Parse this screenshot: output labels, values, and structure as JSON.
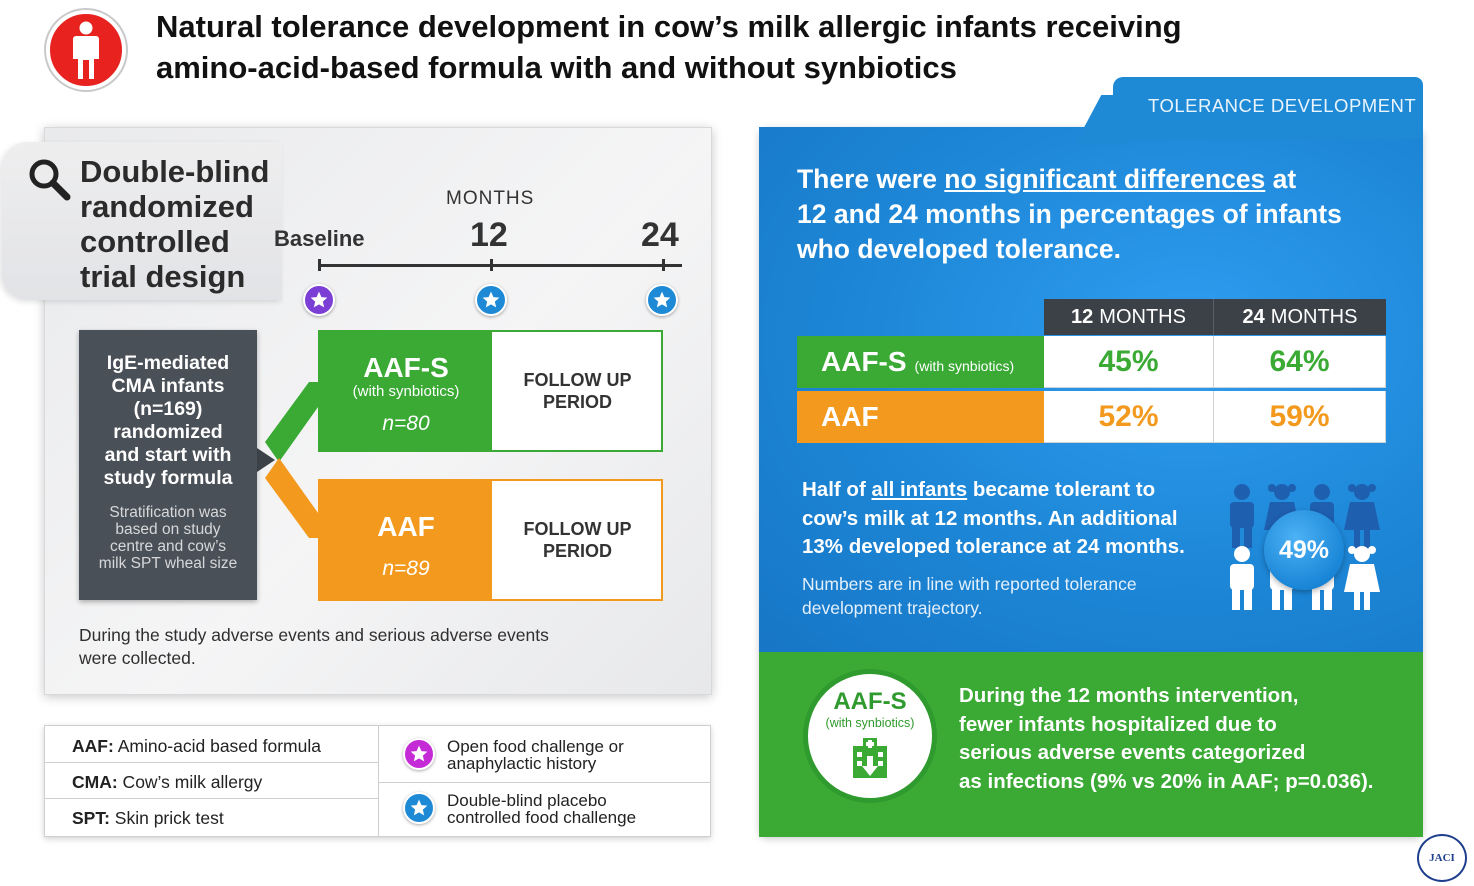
{
  "header": {
    "title_line1": "Natural tolerance development in cow’s milk allergic infants receiving",
    "title_line2": "amino-acid-based formula with and without synbiotics",
    "icon": "person-icon"
  },
  "design": {
    "title_lines": [
      "Double-blind",
      "randomized",
      "controlled",
      "trial design"
    ],
    "timeline": {
      "months_label": "MONTHS",
      "baseline_label": "Baseline",
      "m12_label": "12",
      "m24_label": "24"
    },
    "population": {
      "main_lines": [
        "IgE-mediated",
        "CMA infants",
        "(n=169)",
        "randomized",
        "and start with",
        "study formula"
      ],
      "strat_lines": [
        "Stratification was",
        "based on study",
        "centre and cow’s",
        "milk SPT wheal size"
      ]
    },
    "arms": [
      {
        "name": "AAF-S",
        "sub": "(with synbiotics)",
        "n": "n=80",
        "followup_lines": [
          "FOLLOW UP",
          "PERIOD"
        ],
        "color": "#3aaa35"
      },
      {
        "name": "AAF",
        "sub": "",
        "n": "n=89",
        "followup_lines": [
          "FOLLOW UP",
          "PERIOD"
        ],
        "color": "#f39a1e"
      }
    ],
    "ae_text_lines": [
      "During the study adverse events and serious adverse events",
      "were collected."
    ],
    "star_colors": {
      "open": "#7b3fd6",
      "blind": "#1e8ad6"
    }
  },
  "legend": {
    "abbrevs": [
      {
        "key": "AAF:",
        "value": " Amino-acid based formula"
      },
      {
        "key": "CMA:",
        "value": " Cow’s milk allergy"
      },
      {
        "key": "SPT:",
        "value": " Skin prick test"
      }
    ],
    "stars": [
      {
        "lines": [
          "Open food challenge or",
          "anaphylactic history"
        ],
        "icon": "purple-star-icon"
      },
      {
        "lines": [
          "Double-blind placebo",
          "controlled food challenge"
        ],
        "icon": "blue-star-icon"
      }
    ]
  },
  "results": {
    "tab_label": "TOLERANCE DEVELOPMENT",
    "statement": {
      "pre": "There were ",
      "underlined": "no significant differences",
      "post_line1": " at",
      "line2": "12 and 24 months in percentages of infants",
      "line3": "who developed tolerance."
    },
    "table": {
      "columns": [
        {
          "num": "12",
          "unit": "MONTHS"
        },
        {
          "num": "24",
          "unit": "MONTHS"
        }
      ],
      "rows": [
        {
          "label": "AAF-S",
          "sub": "(with synbiotics)",
          "values": [
            "45%",
            "64%"
          ],
          "color": "#3aaa35"
        },
        {
          "label": "AAF",
          "sub": "",
          "values": [
            "52%",
            "59%"
          ],
          "color": "#f39a1e"
        }
      ]
    },
    "half": {
      "pre": "Half of ",
      "underlined": "all infants",
      "post_line1": " became tolerant to",
      "line2": "cow’s milk at 12 months. An additional",
      "line3": "13% developed tolerance at 24 months."
    },
    "numbers_lines": [
      "Numbers are in line with reported tolerance",
      "development trajectory."
    ],
    "percent_circle": "49%",
    "safety": {
      "badge_name": "AAF-S",
      "badge_sub": "(with synbiotics)",
      "lines": [
        "During the 12 months intervention,",
        "fewer infants hospitalized due to",
        "serious adverse events categorized",
        "as infections (9% vs 20% in AAF; p=0.036)."
      ]
    }
  },
  "seal": {
    "text": "JACI",
    "logo_text": "The Journal of Allergy & Clinical Immunology"
  }
}
